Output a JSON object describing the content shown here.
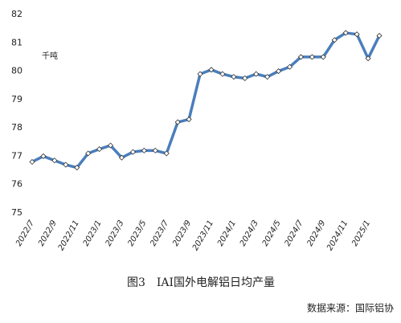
{
  "chart_data": {
    "type": "line",
    "annotation": "千吨",
    "caption": "图3　IAI国外电解铝日均产量",
    "source": "数据来源：国际铝协",
    "categories": [
      "2022/7",
      null,
      "2022/9",
      null,
      "2022/11",
      null,
      "2023/1",
      null,
      "2023/3",
      null,
      "2023/5",
      null,
      "2023/7",
      null,
      "2023/9",
      null,
      "2023/11",
      null,
      "2024/1",
      null,
      "2024/3",
      null,
      "2024/5",
      null,
      "2024/7",
      null,
      "2024/9",
      null,
      "2024/11",
      null,
      "2025/1",
      null
    ],
    "values": [
      76.8,
      77.0,
      76.85,
      76.7,
      76.6,
      77.1,
      77.25,
      77.38,
      76.95,
      77.15,
      77.2,
      77.2,
      77.1,
      78.2,
      78.3,
      79.9,
      80.05,
      79.9,
      79.8,
      79.75,
      79.9,
      79.8,
      80.0,
      80.15,
      80.5,
      80.5,
      80.5,
      81.1,
      81.35,
      81.3,
      80.45,
      81.25
    ],
    "color": "#4a7ebb",
    "ylim": [
      75,
      82
    ],
    "yticks": [
      75,
      76,
      77,
      78,
      79,
      80,
      81,
      82
    ],
    "grid": false
  }
}
